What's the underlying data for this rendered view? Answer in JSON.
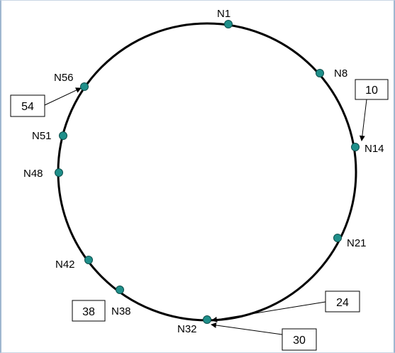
{
  "diagram": {
    "ring_color": "#000000",
    "node_fill": "#1f8f8a",
    "node_stroke": "#0e4f4c",
    "nodes": [
      {
        "id": "N1",
        "label": "N1"
      },
      {
        "id": "N8",
        "label": "N8"
      },
      {
        "id": "N14",
        "label": "N14"
      },
      {
        "id": "N21",
        "label": "N21"
      },
      {
        "id": "N32",
        "label": "N32"
      },
      {
        "id": "N38",
        "label": "N38"
      },
      {
        "id": "N42",
        "label": "N42"
      },
      {
        "id": "N48",
        "label": "N48"
      },
      {
        "id": "N51",
        "label": "N51"
      },
      {
        "id": "N56",
        "label": "N56"
      }
    ],
    "keys": [
      {
        "value": "54",
        "target": "N56"
      },
      {
        "value": "10",
        "target": "N14"
      },
      {
        "value": "24",
        "target": "N32"
      },
      {
        "value": "30",
        "target": "N32"
      },
      {
        "value": "38",
        "target": "N38"
      }
    ]
  }
}
